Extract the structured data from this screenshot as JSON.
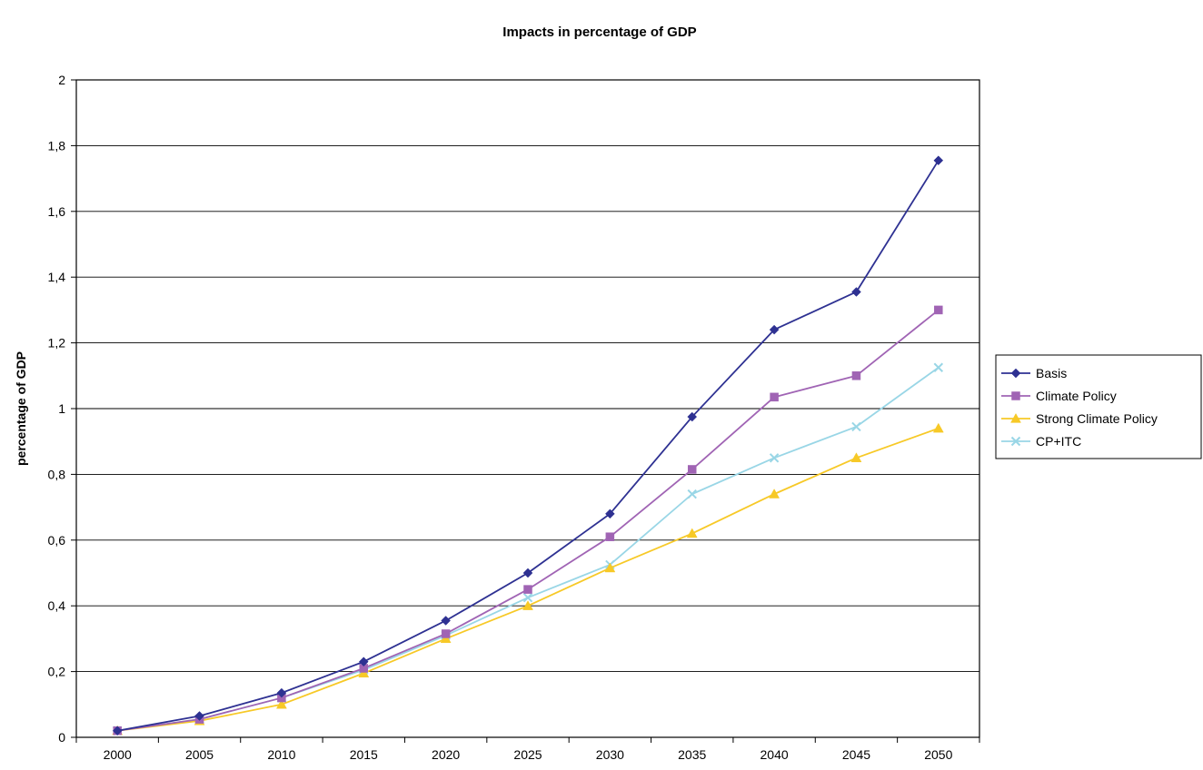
{
  "chart_data": {
    "type": "line",
    "title": "Impacts in percentage of GDP",
    "xlabel": "",
    "ylabel": "percentage of GDP",
    "x": [
      "2000",
      "2005",
      "2010",
      "2015",
      "2020",
      "2025",
      "2030",
      "2035",
      "2040",
      "2045",
      "2050"
    ],
    "ylim": [
      0,
      2
    ],
    "yticks": [
      "0",
      "0,2",
      "0,4",
      "0,6",
      "0,8",
      "1",
      "1,2",
      "1,4",
      "1,6",
      "1,8",
      "2"
    ],
    "grid": "horizontal",
    "legend_position": "right",
    "series": [
      {
        "name": "Basis",
        "color": "#2e3192",
        "marker": "diamond",
        "values": [
          0.02,
          0.065,
          0.135,
          0.23,
          0.355,
          0.5,
          0.68,
          0.975,
          1.24,
          1.355,
          1.755
        ]
      },
      {
        "name": "Climate Policy",
        "color": "#a064b4",
        "marker": "square",
        "values": [
          0.02,
          0.055,
          0.12,
          0.21,
          0.315,
          0.45,
          0.61,
          0.815,
          1.035,
          1.1,
          1.3
        ]
      },
      {
        "name": "Strong Climate Policy",
        "color": "#f7c927",
        "marker": "triangle",
        "values": [
          0.02,
          0.05,
          0.1,
          0.195,
          0.3,
          0.4,
          0.515,
          0.62,
          0.74,
          0.85,
          0.94
        ]
      },
      {
        "name": "CP+ITC",
        "color": "#99d6e6",
        "marker": "x",
        "values": [
          0.02,
          0.055,
          0.12,
          0.205,
          0.31,
          0.425,
          0.525,
          0.74,
          0.85,
          0.945,
          1.125
        ]
      }
    ]
  }
}
